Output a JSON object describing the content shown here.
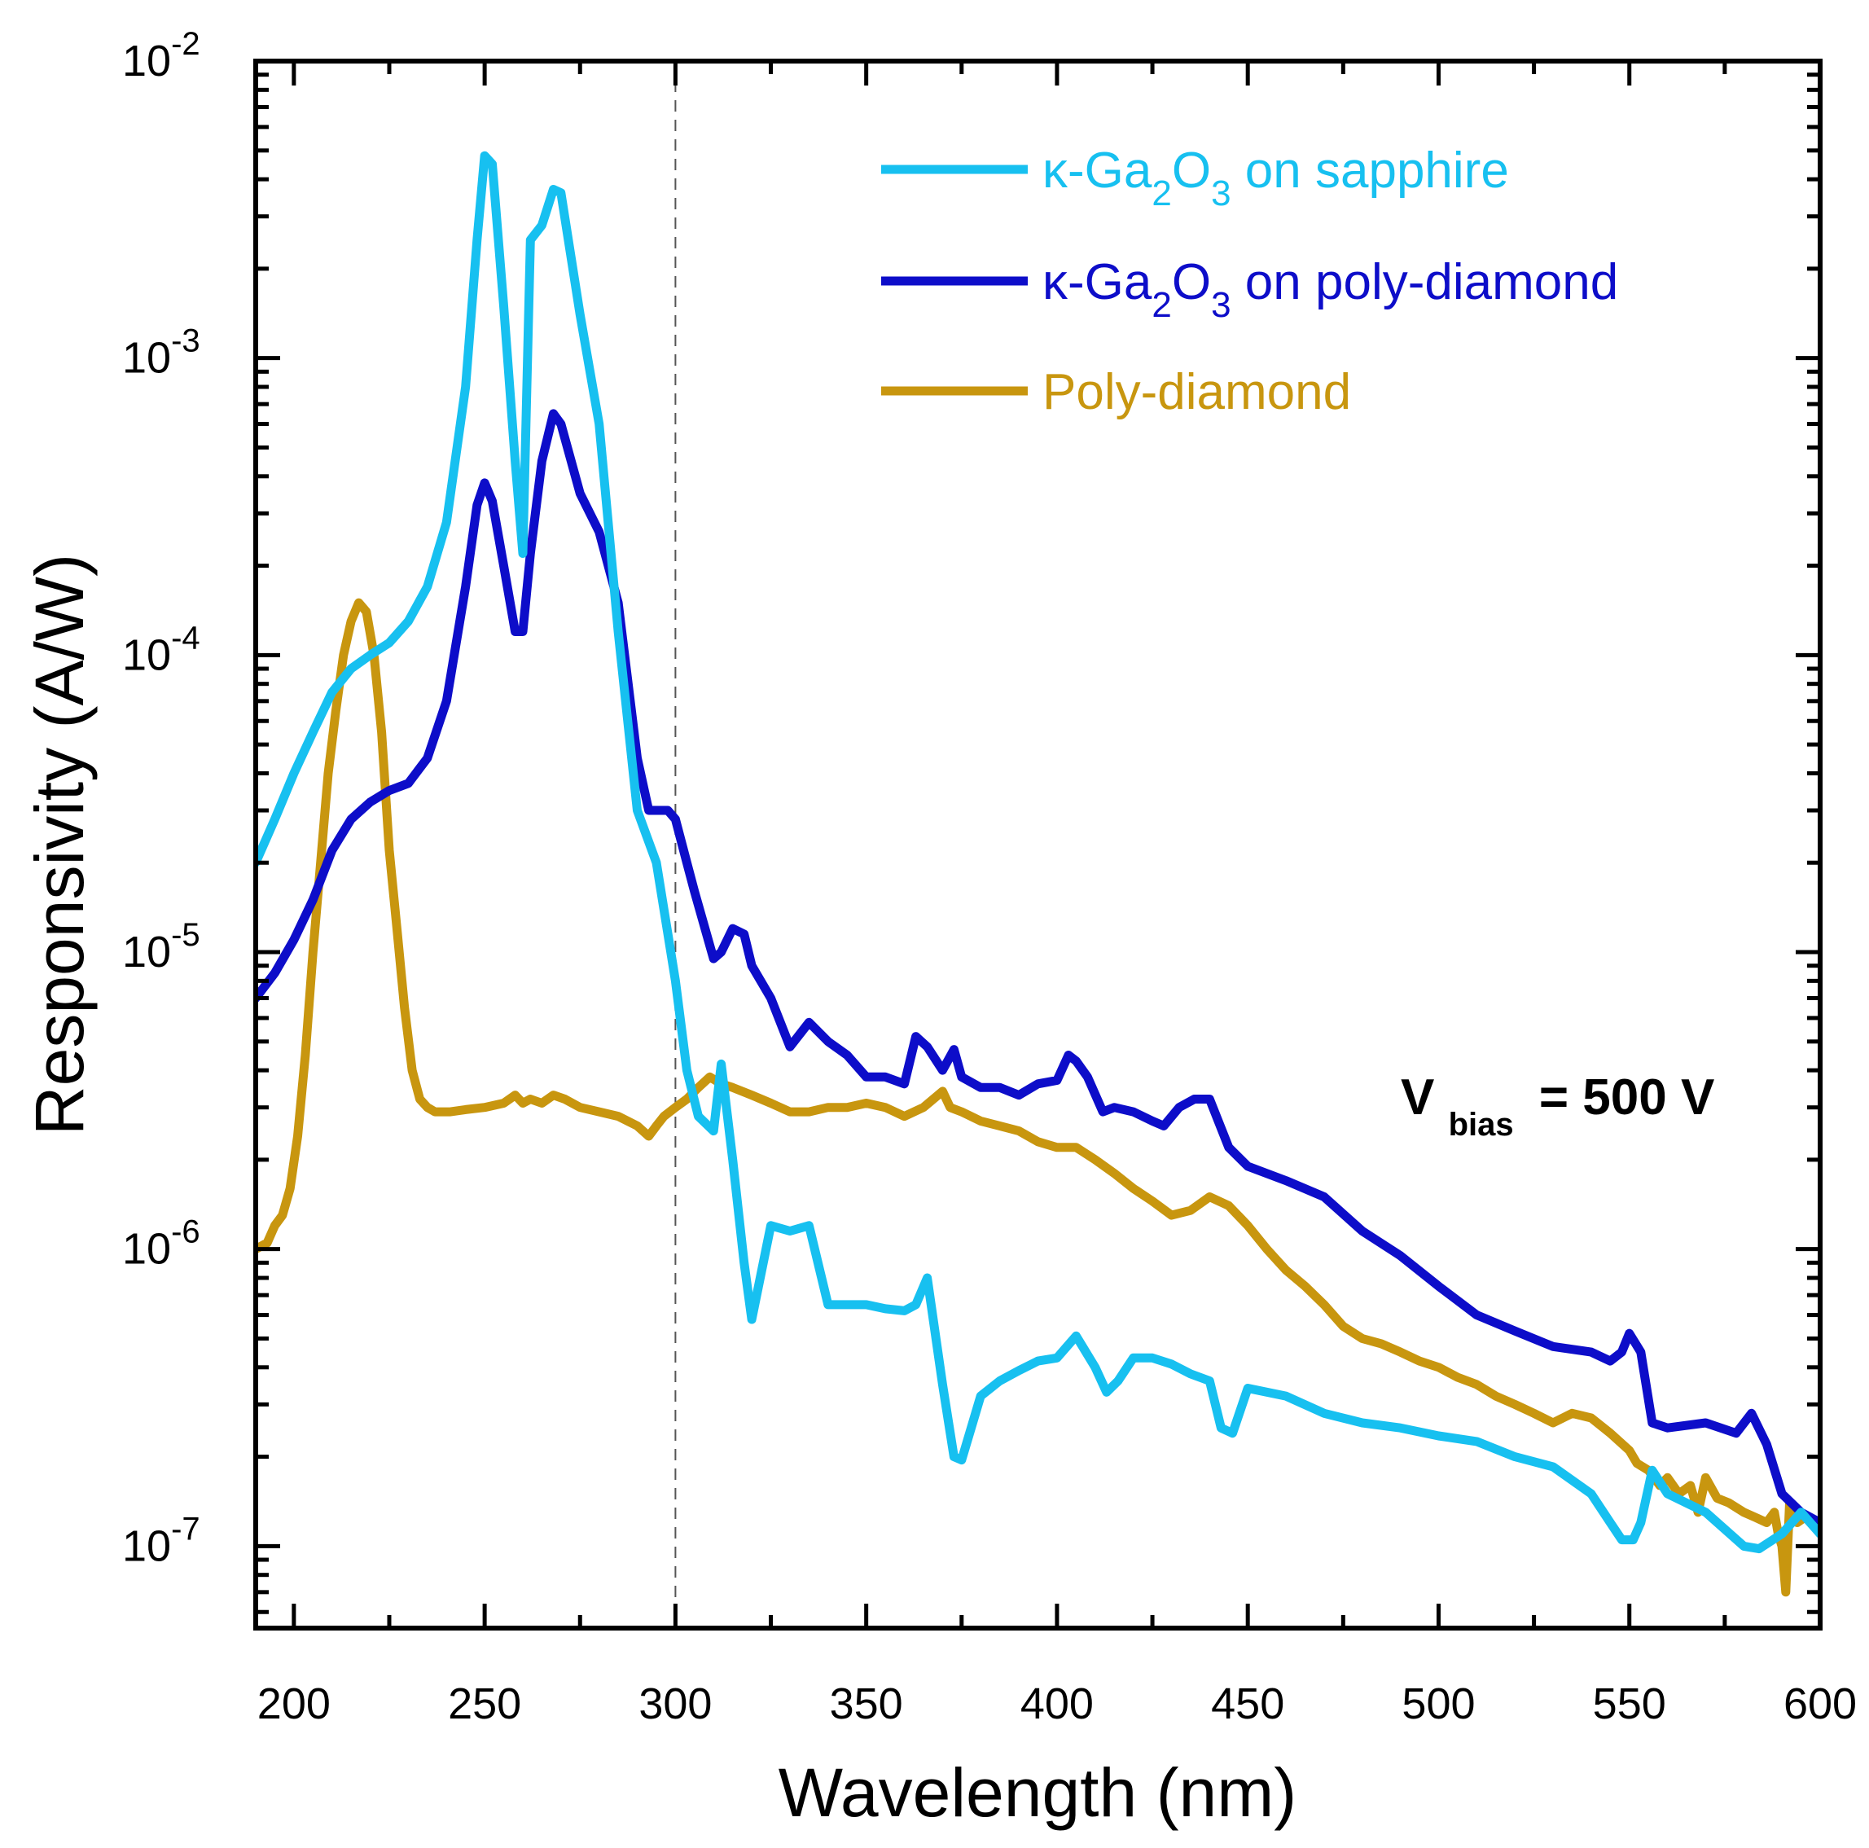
{
  "chart_data": {
    "type": "line",
    "title": "",
    "xlabel": "Wavelength (nm)",
    "ylabel": "Responsivity (A/W)",
    "xlim": [
      190,
      600
    ],
    "ylim": [
      5e-08,
      0.01
    ],
    "yscale": "log",
    "x_ticks": [
      200,
      250,
      300,
      350,
      400,
      450,
      500,
      550,
      600
    ],
    "x_tick_labels": [
      "200",
      "250",
      "300",
      "350",
      "400",
      "450",
      "500",
      "550",
      "600"
    ],
    "y_ticks": [
      1e-07,
      1e-06,
      1e-05,
      0.0001,
      0.001,
      0.01
    ],
    "y_tick_labels": [
      {
        "base": "10",
        "exp": "-7"
      },
      {
        "base": "10",
        "exp": "-6"
      },
      {
        "base": "10",
        "exp": "-5"
      },
      {
        "base": "10",
        "exp": "-4"
      },
      {
        "base": "10",
        "exp": "-3"
      },
      {
        "base": "10",
        "exp": "-2"
      }
    ],
    "reference_line_x": 300,
    "legend_position": "top-right",
    "annotation": {
      "main": "V",
      "sub": "bias",
      "rest": "= 500 V"
    },
    "series": [
      {
        "name": "κ-Ga2O3 on sapphire",
        "label": {
          "pre": "κ-Ga",
          "sub1": "2",
          "mid": "O",
          "sub2": "3",
          "post": " on sapphire"
        },
        "color": "#17c0f0",
        "x": [
          190,
          195,
          200,
          205,
          210,
          215,
          220,
          225,
          230,
          235,
          240,
          245,
          248,
          250,
          252,
          255,
          258,
          260,
          262,
          265,
          268,
          270,
          275,
          280,
          285,
          290,
          295,
          300,
          303,
          306,
          310,
          312,
          315,
          318,
          320,
          325,
          330,
          335,
          340,
          345,
          350,
          355,
          360,
          363,
          366,
          370,
          373,
          375,
          380,
          385,
          390,
          395,
          400,
          405,
          410,
          413,
          416,
          420,
          425,
          430,
          435,
          440,
          443,
          446,
          450,
          460,
          470,
          480,
          490,
          500,
          510,
          520,
          530,
          540,
          545,
          548,
          551,
          553,
          556,
          560,
          570,
          580,
          584,
          590,
          595,
          600
        ],
        "y": [
          2e-05,
          2.8e-05,
          4e-05,
          5.5e-05,
          7.5e-05,
          9e-05,
          0.0001,
          0.00011,
          0.00013,
          0.00017,
          0.00028,
          0.0008,
          0.0025,
          0.0048,
          0.0045,
          0.0015,
          0.00045,
          0.00022,
          0.0025,
          0.0028,
          0.0037,
          0.0036,
          0.0014,
          0.0006,
          0.00012,
          3e-05,
          2e-05,
          8e-06,
          4e-06,
          2.8e-06,
          2.5e-06,
          4.2e-06,
          2e-06,
          9e-07,
          5.8e-07,
          1.2e-06,
          1.15e-06,
          1.2e-06,
          6.5e-07,
          6.5e-07,
          6.5e-07,
          6.3e-07,
          6.2e-07,
          6.5e-07,
          8e-07,
          3.5e-07,
          2e-07,
          1.95e-07,
          3.2e-07,
          3.6e-07,
          3.9e-07,
          4.2e-07,
          4.3e-07,
          5.1e-07,
          4e-07,
          3.3e-07,
          3.6e-07,
          4.3e-07,
          4.3e-07,
          4.1e-07,
          3.8e-07,
          3.6e-07,
          2.5e-07,
          2.4e-07,
          3.4e-07,
          3.2e-07,
          2.8e-07,
          2.6e-07,
          2.5e-07,
          2.35e-07,
          2.25e-07,
          2e-07,
          1.85e-07,
          1.5e-07,
          1.2e-07,
          1.05e-07,
          1.05e-07,
          1.2e-07,
          1.8e-07,
          1.5e-07,
          1.3e-07,
          1e-07,
          9.8e-08,
          1.1e-07,
          1.3e-07,
          1.1e-07
        ]
      },
      {
        "name": "κ-Ga2O3 on poly-diamond",
        "label": {
          "pre": "κ-Ga",
          "sub1": "2",
          "mid": "O",
          "sub2": "3",
          "post": " on poly-diamond"
        },
        "color": "#0d0dc9",
        "x": [
          190,
          195,
          200,
          205,
          210,
          215,
          220,
          225,
          230,
          235,
          240,
          245,
          248,
          250,
          252,
          255,
          258,
          260,
          262,
          265,
          268,
          270,
          275,
          280,
          285,
          290,
          293,
          295,
          298,
          300,
          303,
          305,
          310,
          312,
          315,
          318,
          320,
          325,
          330,
          335,
          340,
          345,
          350,
          355,
          360,
          363,
          366,
          370,
          373,
          375,
          380,
          385,
          390,
          395,
          400,
          403,
          405,
          408,
          412,
          415,
          420,
          425,
          428,
          432,
          436,
          440,
          445,
          450,
          460,
          470,
          480,
          490,
          500,
          510,
          520,
          530,
          540,
          545,
          548,
          550,
          553,
          556,
          560,
          570,
          578,
          582,
          586,
          590,
          595,
          600
        ],
        "y": [
          7e-06,
          8.5e-06,
          1.1e-05,
          1.5e-05,
          2.2e-05,
          2.8e-05,
          3.2e-05,
          3.5e-05,
          3.7e-05,
          4.5e-05,
          7e-05,
          0.00017,
          0.00032,
          0.00038,
          0.00033,
          0.0002,
          0.00012,
          0.00012,
          0.00022,
          0.00045,
          0.00065,
          0.0006,
          0.00035,
          0.00026,
          0.00015,
          4.5e-05,
          3e-05,
          3e-05,
          3e-05,
          2.8e-05,
          2e-05,
          1.6e-05,
          9.5e-06,
          1e-05,
          1.2e-05,
          1.15e-05,
          9e-06,
          7e-06,
          4.8e-06,
          5.8e-06,
          5e-06,
          4.5e-06,
          3.8e-06,
          3.8e-06,
          3.6e-06,
          5.2e-06,
          4.8e-06,
          4e-06,
          4.7e-06,
          3.8e-06,
          3.5e-06,
          3.5e-06,
          3.3e-06,
          3.6e-06,
          3.7e-06,
          4.5e-06,
          4.3e-06,
          3.8e-06,
          2.9e-06,
          3e-06,
          2.9e-06,
          2.7e-06,
          2.6e-06,
          3e-06,
          3.2e-06,
          3.2e-06,
          2.2e-06,
          1.9e-06,
          1.7e-06,
          1.5e-06,
          1.15e-06,
          9.5e-07,
          7.5e-07,
          6e-07,
          5.3e-07,
          4.7e-07,
          4.5e-07,
          4.2e-07,
          4.5e-07,
          5.2e-07,
          4.5e-07,
          2.6e-07,
          2.5e-07,
          2.6e-07,
          2.4e-07,
          2.8e-07,
          2.2e-07,
          1.5e-07,
          1.3e-07,
          1.2e-07
        ]
      },
      {
        "name": "Poly-diamond",
        "label": {
          "pre": "Poly-diamond",
          "sub1": "",
          "mid": "",
          "sub2": "",
          "post": ""
        },
        "color": "#c8960f",
        "x": [
          190,
          193,
          195,
          197,
          199,
          201,
          203,
          205,
          207,
          209,
          211,
          213,
          215,
          217,
          219,
          221,
          223,
          225,
          227,
          229,
          231,
          233,
          235,
          237,
          239,
          241,
          245,
          250,
          255,
          258,
          260,
          262,
          265,
          268,
          271,
          275,
          280,
          285,
          290,
          293,
          295,
          297,
          300,
          303,
          306,
          309,
          312,
          315,
          320,
          325,
          330,
          335,
          340,
          345,
          350,
          355,
          360,
          365,
          370,
          372,
          375,
          380,
          385,
          390,
          395,
          400,
          405,
          410,
          415,
          420,
          425,
          430,
          435,
          440,
          445,
          450,
          455,
          460,
          465,
          470,
          475,
          480,
          485,
          490,
          495,
          500,
          505,
          510,
          515,
          520,
          525,
          530,
          535,
          540,
          545,
          550,
          552,
          555,
          558,
          560,
          563,
          566,
          568,
          570,
          573,
          576,
          580,
          583,
          586,
          588,
          589,
          590,
          591,
          592,
          594,
          596,
          598,
          600
        ],
        "y": [
          1e-06,
          1.05e-06,
          1.2e-06,
          1.3e-06,
          1.6e-06,
          2.4e-06,
          4.5e-06,
          1e-05,
          2e-05,
          4e-05,
          6.5e-05,
          0.0001,
          0.00013,
          0.00015,
          0.00014,
          0.0001,
          5.5e-05,
          2.2e-05,
          1.2e-05,
          6.5e-06,
          4e-06,
          3.2e-06,
          3e-06,
          2.9e-06,
          2.9e-06,
          2.9e-06,
          2.95e-06,
          3e-06,
          3.1e-06,
          3.3e-06,
          3.1e-06,
          3.2e-06,
          3.1e-06,
          3.3e-06,
          3.2e-06,
          3e-06,
          2.9e-06,
          2.8e-06,
          2.6e-06,
          2.4e-06,
          2.6e-06,
          2.8e-06,
          3e-06,
          3.2e-06,
          3.5e-06,
          3.8e-06,
          3.6e-06,
          3.5e-06,
          3.3e-06,
          3.1e-06,
          2.9e-06,
          2.9e-06,
          3e-06,
          3e-06,
          3.1e-06,
          3e-06,
          2.8e-06,
          3e-06,
          3.4e-06,
          3e-06,
          2.9e-06,
          2.7e-06,
          2.6e-06,
          2.5e-06,
          2.3e-06,
          2.2e-06,
          2.2e-06,
          2e-06,
          1.8e-06,
          1.6e-06,
          1.45e-06,
          1.3e-06,
          1.35e-06,
          1.5e-06,
          1.4e-06,
          1.2e-06,
          1e-06,
          8.5e-07,
          7.5e-07,
          6.5e-07,
          5.5e-07,
          5e-07,
          4.8e-07,
          4.5e-07,
          4.2e-07,
          4e-07,
          3.7e-07,
          3.5e-07,
          3.2e-07,
          3e-07,
          2.8e-07,
          2.6e-07,
          2.8e-07,
          2.7e-07,
          2.4e-07,
          2.1e-07,
          1.9e-07,
          1.8e-07,
          1.6e-07,
          1.7e-07,
          1.5e-07,
          1.6e-07,
          1.3e-07,
          1.7e-07,
          1.45e-07,
          1.4e-07,
          1.3e-07,
          1.25e-07,
          1.2e-07,
          1.3e-07,
          1.1e-07,
          1e-07,
          7e-08,
          1.4e-07,
          1.2e-07,
          1.25e-07,
          1.2e-07,
          1.15e-07
        ]
      }
    ]
  }
}
